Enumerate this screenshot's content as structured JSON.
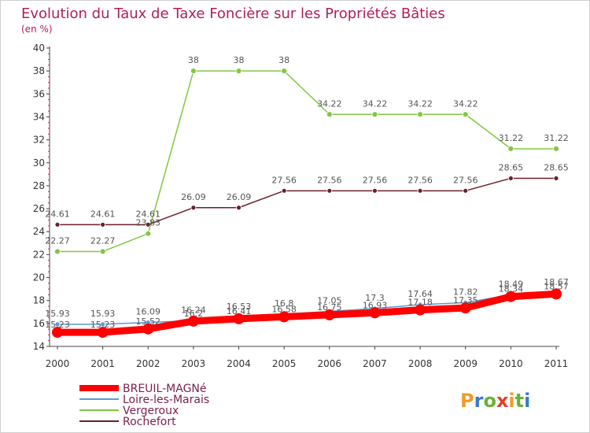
{
  "chart_data": {
    "type": "line",
    "title": "Evolution du Taux de Taxe Foncière sur les Propriétés Bâties",
    "ylabel": "(en %)",
    "xlabel": "",
    "x": [
      "2000",
      "2001",
      "2002",
      "2003",
      "2004",
      "2005",
      "2006",
      "2007",
      "2008",
      "2009",
      "2010",
      "2011"
    ],
    "ylim": [
      14,
      40
    ],
    "yticks": [
      14,
      16,
      18,
      20,
      22,
      24,
      26,
      28,
      30,
      32,
      34,
      36,
      38,
      40
    ],
    "legend_position": "bottom-left",
    "series": [
      {
        "name": "BREUIL-MAGNé",
        "color": "#ff0000",
        "values": [
          15.23,
          15.23,
          15.52,
          16.2,
          16.41,
          16.58,
          16.75,
          16.93,
          17.18,
          17.35,
          18.34,
          18.57
        ],
        "labels": [
          "15.23",
          "15.23",
          "15.52",
          "16.2",
          "16.41",
          "16.58",
          "16.75",
          "16.93",
          "17.18",
          "17.35",
          "18.34",
          "18.57"
        ]
      },
      {
        "name": "Loire-les-Marais",
        "color": "#5b9bd5",
        "values": [
          15.93,
          15.93,
          16.09,
          16.24,
          16.53,
          16.8,
          17.05,
          17.3,
          17.64,
          17.82,
          18.49,
          18.67
        ],
        "labels": [
          "15.93",
          "15.93",
          "16.09",
          "16.24",
          "16.53",
          "16.8",
          "17.05",
          "17.3",
          "17.64",
          "17.82",
          "18.49",
          "18.67"
        ]
      },
      {
        "name": "Vergeroux",
        "color": "#80c840",
        "values": [
          22.27,
          22.27,
          23.83,
          38,
          38,
          38,
          34.22,
          34.22,
          34.22,
          34.22,
          31.22,
          31.22
        ],
        "labels": [
          "22.27",
          "22.27",
          "23.83",
          "38",
          "38",
          "38",
          "34.22",
          "34.22",
          "34.22",
          "34.22",
          "31.22",
          "31.22"
        ]
      },
      {
        "name": "Rochefort",
        "color": "#6b1f2a",
        "values": [
          24.61,
          24.61,
          24.61,
          26.09,
          26.09,
          27.56,
          27.56,
          27.56,
          27.56,
          27.56,
          28.65,
          28.65
        ],
        "labels": [
          "24.61",
          "24.61",
          "24.61",
          "26.09",
          "26.09",
          "27.56",
          "27.56",
          "27.56",
          "27.56",
          "27.56",
          "28.65",
          "28.65"
        ]
      }
    ]
  },
  "watermark": "Proxiti"
}
